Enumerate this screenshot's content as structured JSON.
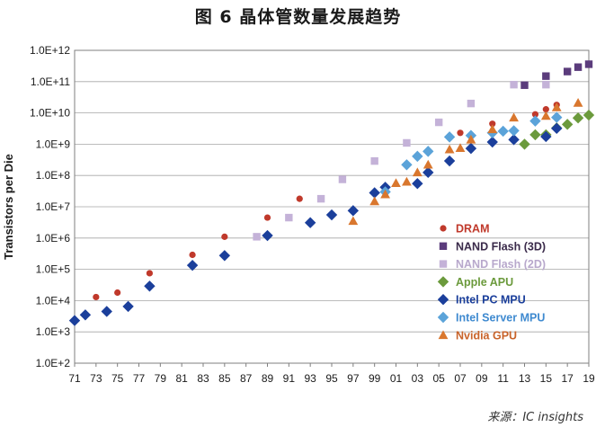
{
  "title": "图 6 晶体管数量发展趋势",
  "source": "来源：IC insights",
  "chart_data": {
    "type": "scatter",
    "title": "图 6 晶体管数量发展趋势",
    "xlabel": "",
    "ylabel": "Transistors per Die",
    "y_scale": "log",
    "ylim": [
      100,
      1000000000000
    ],
    "y_ticks": [
      100,
      1000,
      10000,
      100000,
      1000000,
      10000000,
      100000000,
      1000000000,
      10000000000,
      100000000000,
      1000000000000
    ],
    "y_tick_labels": [
      "1.0E+2",
      "1.0E+3",
      "1.0E+4",
      "1.0E+5",
      "1.0E+6",
      "1.0E+7",
      "1.0E+8",
      "1.0E+9",
      "1.0E+10",
      "1.0E+11",
      "1.0E+12"
    ],
    "xlim": [
      1971,
      2019
    ],
    "x_ticks": [
      1971,
      1973,
      1975,
      1977,
      1979,
      1981,
      1983,
      1985,
      1987,
      1989,
      1991,
      1993,
      1995,
      1997,
      1999,
      2001,
      2003,
      2005,
      2007,
      2009,
      2011,
      2013,
      2015,
      2017,
      2019
    ],
    "x_tick_labels": [
      "71",
      "73",
      "75",
      "77",
      "79",
      "81",
      "83",
      "85",
      "87",
      "89",
      "91",
      "93",
      "95",
      "97",
      "99",
      "01",
      "03",
      "05",
      "07",
      "09",
      "11",
      "13",
      "15",
      "17",
      "19"
    ],
    "grid": true,
    "legend_position": "bottom-right",
    "series": [
      {
        "name": "DRAM",
        "marker": "circle",
        "color": "#c0392b",
        "label_color": "#c0392b",
        "points": [
          [
            1973,
            13000
          ],
          [
            1975,
            18000
          ],
          [
            1978,
            75000
          ],
          [
            1982,
            290000
          ],
          [
            1985,
            1100000
          ],
          [
            1989,
            4500000
          ],
          [
            1992,
            18000000
          ],
          [
            1996,
            75000000
          ],
          [
            1999,
            290000000
          ],
          [
            2002,
            1100000000
          ],
          [
            2007,
            2300000000
          ],
          [
            2010,
            4500000000
          ],
          [
            2014,
            9000000000
          ],
          [
            2015,
            13000000000
          ],
          [
            2016,
            18000000000
          ]
        ]
      },
      {
        "name": "NAND Flash (3D)",
        "marker": "square",
        "color": "#5b3c7c",
        "label_color": "#3a2a4a",
        "points": [
          [
            2013,
            77000000000
          ],
          [
            2015,
            150000000000
          ],
          [
            2017,
            210000000000
          ],
          [
            2018,
            290000000000
          ],
          [
            2019,
            360000000000
          ]
        ]
      },
      {
        "name": "NAND Flash (2D)",
        "marker": "square",
        "color": "#c4b2d8",
        "label_color": "#b8a8cc",
        "points": [
          [
            1988,
            1100000
          ],
          [
            1991,
            4500000
          ],
          [
            1994,
            18000000
          ],
          [
            1996,
            75000000
          ],
          [
            1999,
            290000000
          ],
          [
            2002,
            1100000000
          ],
          [
            2005,
            5000000000
          ],
          [
            2008,
            20000000000
          ],
          [
            2012,
            80000000000
          ],
          [
            2015,
            80000000000
          ]
        ]
      },
      {
        "name": "Apple APU",
        "marker": "diamond",
        "color": "#6b9a3c",
        "label_color": "#6b9a3c",
        "points": [
          [
            2013,
            1000000000
          ],
          [
            2014,
            2000000000
          ],
          [
            2015,
            2000000000
          ],
          [
            2016,
            3300000000
          ],
          [
            2017,
            4300000000
          ],
          [
            2018,
            6900000000
          ],
          [
            2019,
            8500000000
          ]
        ]
      },
      {
        "name": "Intel PC MPU",
        "marker": "diamond",
        "color": "#1b3f9b",
        "label_color": "#1b3f9b",
        "points": [
          [
            1971,
            2300
          ],
          [
            1972,
            3500
          ],
          [
            1974,
            4500
          ],
          [
            1976,
            6500
          ],
          [
            1978,
            29000
          ],
          [
            1982,
            134000
          ],
          [
            1985,
            275000
          ],
          [
            1989,
            1200000
          ],
          [
            1993,
            3100000
          ],
          [
            1995,
            5500000
          ],
          [
            1997,
            7500000
          ],
          [
            1999,
            28000000
          ],
          [
            2000,
            42000000
          ],
          [
            2003,
            55000000
          ],
          [
            2004,
            125000000
          ],
          [
            2006,
            291000000
          ],
          [
            2008,
            731000000
          ],
          [
            2010,
            1170000000
          ],
          [
            2012,
            1400000000
          ],
          [
            2015,
            1750000000
          ],
          [
            2016,
            3200000000
          ]
        ]
      },
      {
        "name": "Intel Server MPU",
        "marker": "diamond",
        "color": "#5ba3d9",
        "label_color": "#3f8ad0",
        "points": [
          [
            2000,
            30000000
          ],
          [
            2002,
            220000000
          ],
          [
            2003,
            410000000
          ],
          [
            2004,
            590000000
          ],
          [
            2006,
            1700000000
          ],
          [
            2008,
            1900000000
          ],
          [
            2010,
            2300000000
          ],
          [
            2011,
            2600000000
          ],
          [
            2012,
            2700000000
          ],
          [
            2014,
            5500000000
          ],
          [
            2016,
            7200000000
          ]
        ]
      },
      {
        "name": "Nvidia GPU",
        "marker": "triangle",
        "color": "#d9772e",
        "label_color": "#c8632a",
        "points": [
          [
            1997,
            3500000
          ],
          [
            1999,
            15000000
          ],
          [
            2000,
            25000000
          ],
          [
            2001,
            57000000
          ],
          [
            2002,
            63000000
          ],
          [
            2003,
            125000000
          ],
          [
            2004,
            222000000
          ],
          [
            2006,
            681000000
          ],
          [
            2007,
            754000000
          ],
          [
            2008,
            1400000000
          ],
          [
            2010,
            3000000000
          ],
          [
            2012,
            7100000000
          ],
          [
            2015,
            8000000000
          ],
          [
            2016,
            15000000000
          ],
          [
            2018,
            21000000000
          ]
        ]
      }
    ]
  }
}
